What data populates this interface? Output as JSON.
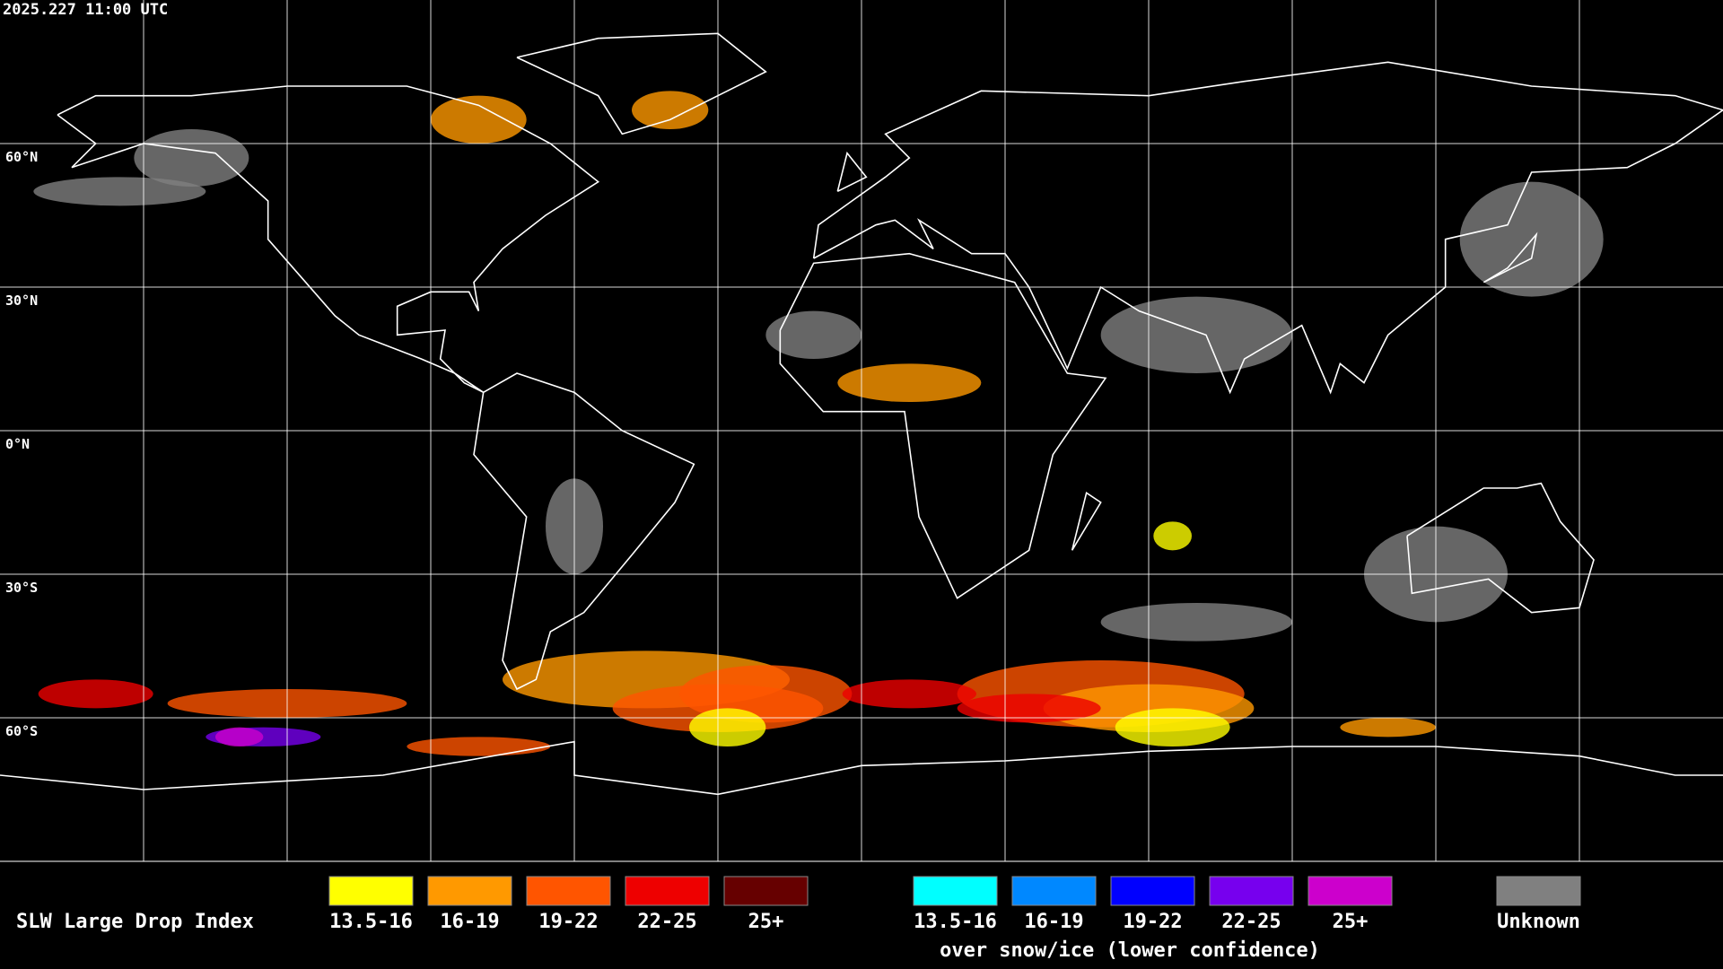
{
  "timestamp": "2025.227 11:00 UTC",
  "lat_labels": [
    "60°N",
    "30°N",
    "0°N",
    "30°S",
    "60°S"
  ],
  "legend": {
    "title": "SLW Large Drop Index",
    "items": [
      {
        "label": "13.5-16",
        "color": "#ffff00"
      },
      {
        "label": "16-19",
        "color": "#ff9900"
      },
      {
        "label": "19-22",
        "color": "#ff5500"
      },
      {
        "label": "22-25",
        "color": "#ee0000"
      },
      {
        "label": "25+",
        "color": "#660000"
      }
    ],
    "snow_items": [
      {
        "label": "13.5-16",
        "color": "#00ffff"
      },
      {
        "label": "16-19",
        "color": "#0088ff"
      },
      {
        "label": "19-22",
        "color": "#0000ff"
      },
      {
        "label": "22-25",
        "color": "#7700ee"
      },
      {
        "label": "25+",
        "color": "#cc00cc"
      }
    ],
    "snow_caption": "over snow/ice (lower confidence)",
    "unknown": {
      "label": "Unknown",
      "color": "#808080"
    }
  }
}
